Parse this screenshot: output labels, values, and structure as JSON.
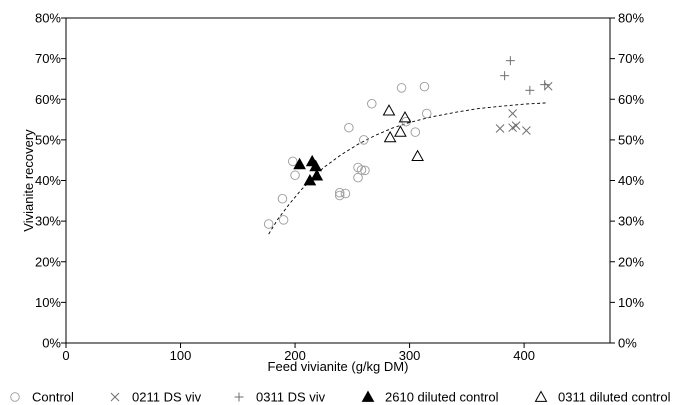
{
  "chart_data": {
    "type": "scatter",
    "xlabel": "Feed vivianite (g/kg DM)",
    "ylabel": "Vivianite recovery",
    "xlim": [
      0,
      475
    ],
    "ylim": [
      0,
      0.8
    ],
    "x_ticks": [
      {
        "value": 0,
        "label": "0"
      },
      {
        "value": 100,
        "label": "100"
      },
      {
        "value": 200,
        "label": "200"
      },
      {
        "value": 300,
        "label": "300"
      },
      {
        "value": 400,
        "label": "400"
      }
    ],
    "y_ticks": [
      {
        "value": 0,
        "label": "0%"
      },
      {
        "value": 0.1,
        "label": "10%"
      },
      {
        "value": 0.2,
        "label": "20%"
      },
      {
        "value": 0.3,
        "label": "30%"
      },
      {
        "value": 0.4,
        "label": "40%"
      },
      {
        "value": 0.5,
        "label": "50%"
      },
      {
        "value": 0.6,
        "label": "60%"
      },
      {
        "value": 0.7,
        "label": "70%"
      },
      {
        "value": 0.8,
        "label": "80%"
      }
    ],
    "legend_position": "bottom",
    "series": [
      {
        "name": "Control",
        "marker": "circle-open",
        "color": "#9a9a9a",
        "points": [
          [
            177,
            0.293
          ],
          [
            189,
            0.355
          ],
          [
            190,
            0.303
          ],
          [
            198,
            0.447
          ],
          [
            200,
            0.413
          ],
          [
            239,
            0.37
          ],
          [
            239,
            0.363
          ],
          [
            244,
            0.368
          ],
          [
            247,
            0.53
          ],
          [
            255,
            0.432
          ],
          [
            255,
            0.407
          ],
          [
            258,
            0.426
          ],
          [
            260,
            0.5
          ],
          [
            261,
            0.425
          ],
          [
            267,
            0.589
          ],
          [
            293,
            0.628
          ],
          [
            297,
            0.545
          ],
          [
            305,
            0.519
          ],
          [
            313,
            0.631
          ],
          [
            315,
            0.565
          ]
        ]
      },
      {
        "name": "0211 DS viv",
        "marker": "x",
        "color": "#6f6f6f",
        "points": [
          [
            379,
            0.528
          ],
          [
            390,
            0.565
          ],
          [
            390,
            0.53
          ],
          [
            393,
            0.535
          ],
          [
            402,
            0.523
          ],
          [
            421,
            0.632
          ]
        ]
      },
      {
        "name": "0311 DS viv",
        "marker": "plus",
        "color": "#6f6f6f",
        "points": [
          [
            383,
            0.658
          ],
          [
            388,
            0.695
          ],
          [
            405,
            0.622
          ],
          [
            418,
            0.636
          ]
        ]
      },
      {
        "name": "2610 diluted control",
        "marker": "triangle-filled",
        "color": "#000000",
        "points": [
          [
            204,
            0.44
          ],
          [
            213,
            0.4
          ],
          [
            215,
            0.447
          ],
          [
            218,
            0.435
          ],
          [
            219,
            0.412
          ]
        ]
      },
      {
        "name": "0311 diluted control",
        "marker": "triangle-open",
        "color": "#000000",
        "points": [
          [
            282,
            0.572
          ],
          [
            283,
            0.506
          ],
          [
            292,
            0.52
          ],
          [
            296,
            0.555
          ],
          [
            307,
            0.46
          ]
        ]
      }
    ],
    "trendline": {
      "style": "dashed",
      "color": "#000000",
      "points": [
        [
          177,
          0.268
        ],
        [
          185,
          0.305
        ],
        [
          195,
          0.342
        ],
        [
          205,
          0.376
        ],
        [
          215,
          0.405
        ],
        [
          225,
          0.432
        ],
        [
          240,
          0.463
        ],
        [
          255,
          0.489
        ],
        [
          270,
          0.511
        ],
        [
          285,
          0.529
        ],
        [
          300,
          0.543
        ],
        [
          320,
          0.557
        ],
        [
          340,
          0.568
        ],
        [
          360,
          0.577
        ],
        [
          380,
          0.583
        ],
        [
          400,
          0.588
        ],
        [
          420,
          0.591
        ]
      ]
    }
  }
}
